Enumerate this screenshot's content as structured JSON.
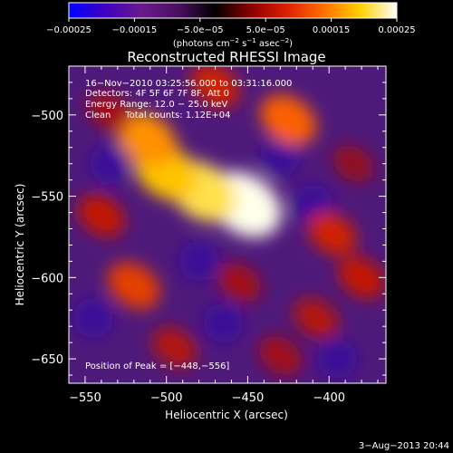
{
  "chart_data": {
    "type": "heatmap",
    "title": "Reconstructed RHESSI Image",
    "xlabel": "Heliocentric X (arcsec)",
    "ylabel": "Heliocentric Y (arcsec)",
    "xlim": [
      -560,
      -365
    ],
    "ylim": [
      -665,
      -470
    ],
    "x_ticks": [
      -550,
      -500,
      -450,
      -400
    ],
    "x_tick_labels": [
      "−550",
      "−500",
      "−450",
      "−400"
    ],
    "y_ticks": [
      -500,
      -550,
      -600,
      -650
    ],
    "y_tick_labels": [
      "−500",
      "−550",
      "−600",
      "−650"
    ],
    "colorbar": {
      "range": [
        -0.00025,
        0.00025
      ],
      "tick_values": [
        -0.00025,
        -0.00015,
        -5e-05,
        5e-05,
        0.00015,
        0.00025
      ],
      "tick_labels": [
        "−0.00025",
        "−0.00015",
        "−5.0e−05",
        "5.0e−05",
        "0.00015",
        "0.00025"
      ],
      "units_prefix": "(photons cm",
      "units_exp1": "−2",
      "units_mid": " s",
      "units_exp2": "−1",
      "units_mid2": " asec",
      "units_exp3": "−2",
      "units_suffix": ")",
      "colors": [
        "#0000ff",
        "#4000c0",
        "#6a1a8c",
        "#4a1060",
        "#000000",
        "#8b0000",
        "#e02000",
        "#ff7000",
        "#ffd000",
        "#ffffff"
      ]
    },
    "annotations": [
      "16−Nov−2010 03:25:56.000 to 03:31:16.000",
      "Detectors: 4F 5F 6F 7F 8F, Att 0",
      "Energy Range: 12.0 − 25.0 keV",
      "Clean     Total counts: 1.12E+04"
    ],
    "peak_label": "Position of Peak = [−448,−556]",
    "peak_position": [
      -448,
      -556
    ],
    "blobs": [
      {
        "x": -452,
        "y": -555,
        "value": 0.00025
      },
      {
        "x": -478,
        "y": -547,
        "value": 0.00022
      },
      {
        "x": -500,
        "y": -535,
        "value": 0.0002
      },
      {
        "x": -512,
        "y": -515,
        "value": 0.00018
      },
      {
        "x": -425,
        "y": -503,
        "value": 0.00016
      },
      {
        "x": -470,
        "y": -482,
        "value": 0.00012
      },
      {
        "x": -535,
        "y": -498,
        "value": 9e-05
      },
      {
        "x": -385,
        "y": -530,
        "value": 8e-05
      },
      {
        "x": -398,
        "y": -573,
        "value": 0.00012
      },
      {
        "x": -455,
        "y": -603,
        "value": 9e-05
      },
      {
        "x": -520,
        "y": -605,
        "value": 0.00014
      },
      {
        "x": -540,
        "y": -562,
        "value": 0.00011
      },
      {
        "x": -408,
        "y": -625,
        "value": 0.0001
      },
      {
        "x": -495,
        "y": -643,
        "value": 0.0001
      },
      {
        "x": -430,
        "y": -648,
        "value": 9e-05
      },
      {
        "x": -380,
        "y": -600,
        "value": 0.00011
      }
    ]
  },
  "footer": {
    "date": "3−Aug−2013 20:44"
  }
}
